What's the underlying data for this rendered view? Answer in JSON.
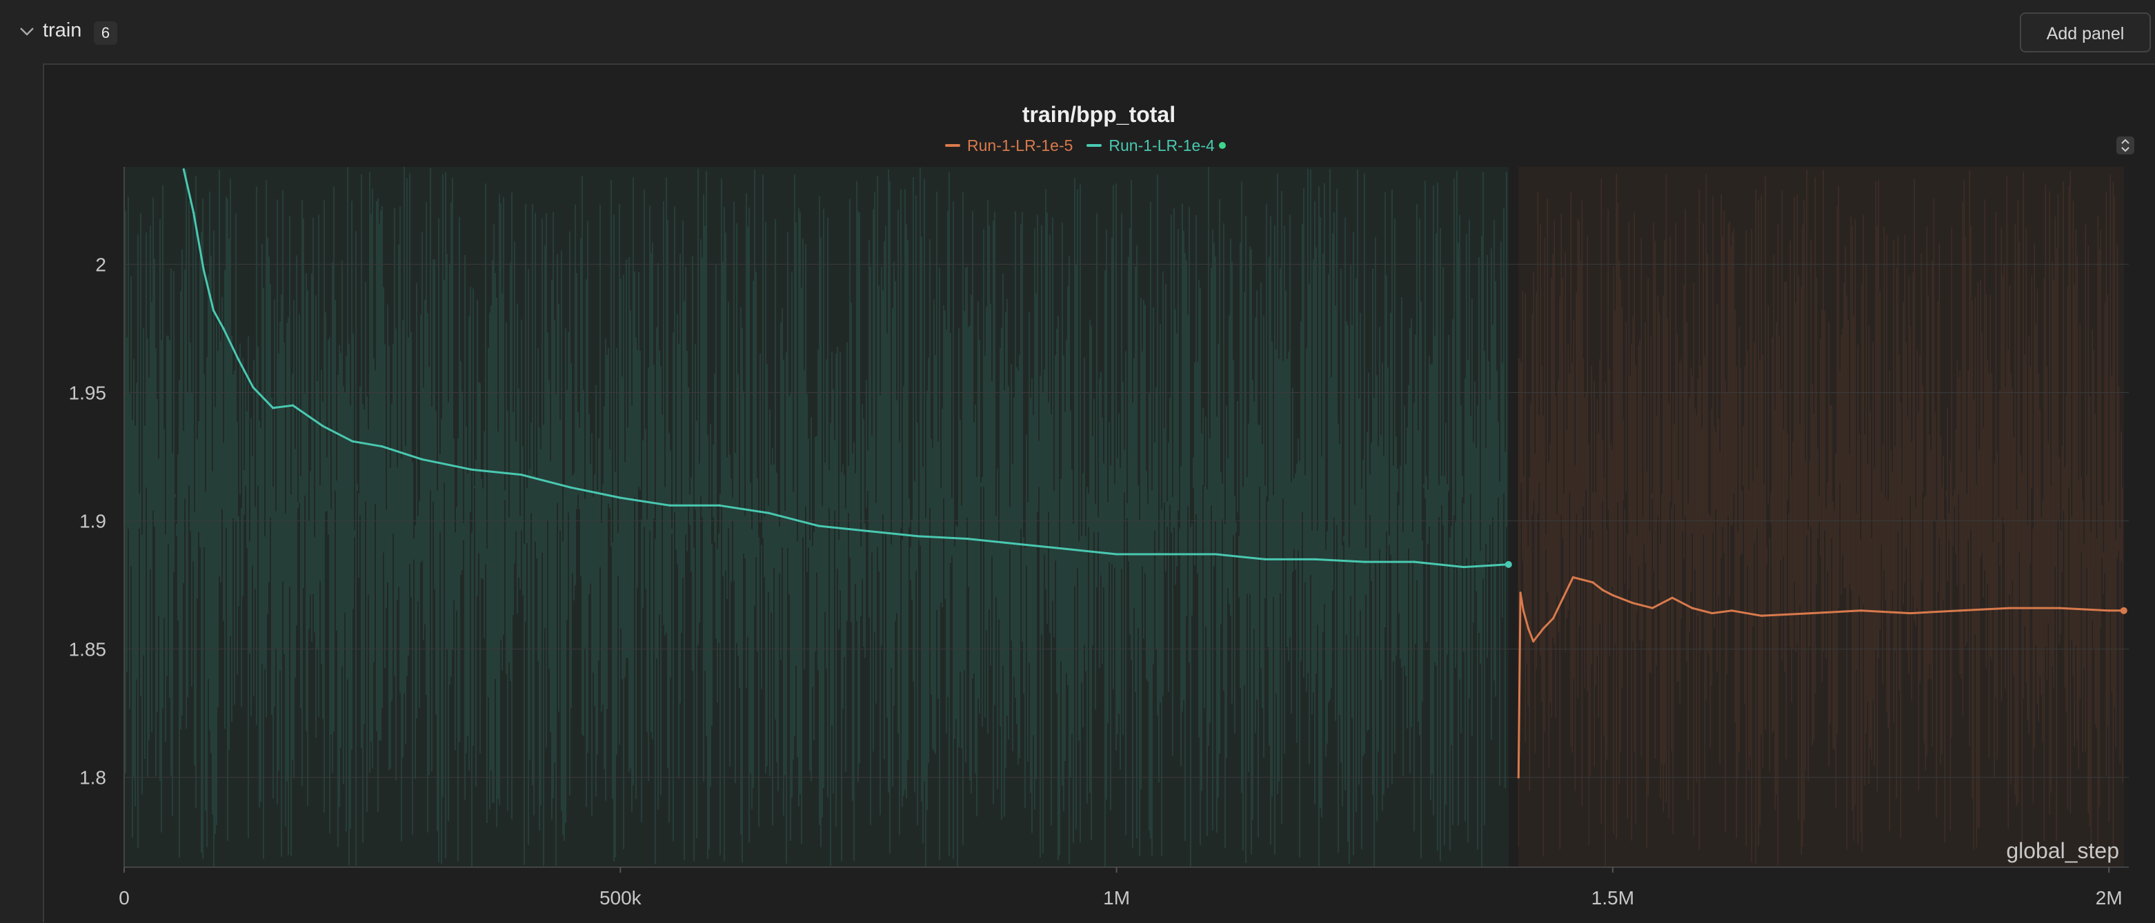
{
  "section": {
    "title": "train",
    "count": "6",
    "add_panel_label": "Add panel"
  },
  "colors": {
    "run_lr_1e5": "#d97a4c",
    "run_lr_1e4": "#49c9b1",
    "active_dot": "#3dd68c"
  },
  "chart_data": {
    "type": "line",
    "title": "train/bpp_total",
    "xlabel": "global_step",
    "ylabel": "",
    "xlim": [
      0,
      2020000
    ],
    "ylim": [
      1.765,
      2.038
    ],
    "x_ticks": [
      {
        "value": 0,
        "label": "0"
      },
      {
        "value": 500000,
        "label": "500k"
      },
      {
        "value": 1000000,
        "label": "1M"
      },
      {
        "value": 1500000,
        "label": "1.5M"
      },
      {
        "value": 2000000,
        "label": "2M"
      }
    ],
    "y_ticks": [
      {
        "value": 2.0,
        "label": "2"
      },
      {
        "value": 1.95,
        "label": "1.95"
      },
      {
        "value": 1.9,
        "label": "1.9"
      },
      {
        "value": 1.85,
        "label": "1.85"
      },
      {
        "value": 1.8,
        "label": "1.8"
      }
    ],
    "grid": true,
    "legend_position": "top-center",
    "series": [
      {
        "name": "Run-1-LR-1e-5",
        "color": "#d97a4c",
        "x": [
          1405000,
          1407000,
          1410000,
          1415000,
          1420000,
          1430000,
          1440000,
          1450000,
          1460000,
          1470000,
          1480000,
          1490000,
          1500000,
          1520000,
          1540000,
          1560000,
          1580000,
          1600000,
          1620000,
          1650000,
          1700000,
          1750000,
          1800000,
          1850000,
          1900000,
          1950000,
          2000000,
          2015000
        ],
        "y": [
          1.8,
          1.872,
          1.865,
          1.858,
          1.853,
          1.858,
          1.862,
          1.87,
          1.878,
          1.877,
          1.876,
          1.873,
          1.871,
          1.868,
          1.866,
          1.87,
          1.866,
          1.864,
          1.865,
          1.863,
          1.864,
          1.865,
          1.864,
          1.865,
          1.866,
          1.866,
          1.865,
          1.865
        ]
      },
      {
        "name": "Run-1-LR-1e-4",
        "color": "#49c9b1",
        "x": [
          60000,
          70000,
          80000,
          90000,
          100000,
          115000,
          130000,
          150000,
          170000,
          200000,
          230000,
          260000,
          300000,
          350000,
          400000,
          450000,
          500000,
          550000,
          600000,
          650000,
          700000,
          750000,
          800000,
          850000,
          900000,
          950000,
          1000000,
          1050000,
          1100000,
          1150000,
          1200000,
          1250000,
          1300000,
          1350000,
          1395000
        ],
        "y": [
          2.037,
          2.02,
          1.998,
          1.982,
          1.975,
          1.963,
          1.952,
          1.944,
          1.945,
          1.937,
          1.931,
          1.929,
          1.924,
          1.92,
          1.918,
          1.913,
          1.909,
          1.906,
          1.906,
          1.903,
          1.898,
          1.896,
          1.894,
          1.893,
          1.891,
          1.889,
          1.887,
          1.887,
          1.887,
          1.885,
          1.885,
          1.884,
          1.884,
          1.882,
          1.883
        ]
      }
    ]
  }
}
